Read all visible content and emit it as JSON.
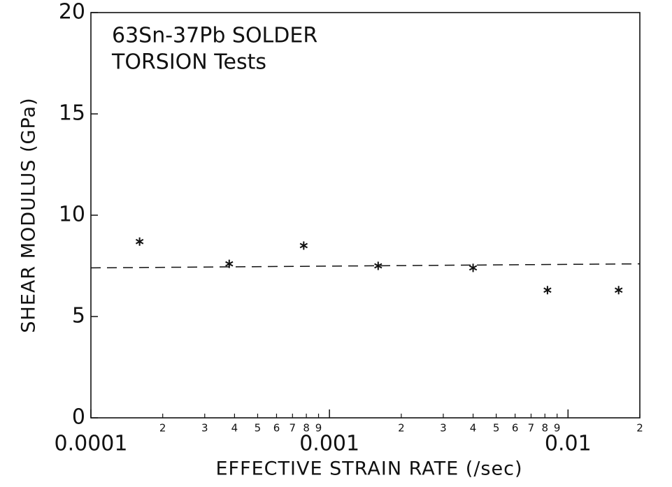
{
  "chart_data": {
    "type": "scatter",
    "annotation": [
      "63Sn-37Pb SOLDER",
      "TORSION Tests"
    ],
    "xlabel": "EFFECTIVE STRAIN RATE (/sec)",
    "ylabel": "SHEAR MODULUS (GPa)",
    "xscale": "log",
    "xlim": [
      0.0001,
      0.02
    ],
    "ylim": [
      0,
      20
    ],
    "xticks": [
      0.0001,
      0.001,
      0.01
    ],
    "xminorticks": [
      {
        "value": 0.0002,
        "label": "2"
      },
      {
        "value": 0.0003,
        "label": "3"
      },
      {
        "value": 0.0004,
        "label": "4"
      },
      {
        "value": 0.0005,
        "label": "5"
      },
      {
        "value": 0.0006,
        "label": "6"
      },
      {
        "value": 0.0007,
        "label": "7"
      },
      {
        "value": 0.0008,
        "label": "8"
      },
      {
        "value": 0.0009,
        "label": "9"
      },
      {
        "value": 0.002,
        "label": "2"
      },
      {
        "value": 0.003,
        "label": "3"
      },
      {
        "value": 0.004,
        "label": "4"
      },
      {
        "value": 0.005,
        "label": "5"
      },
      {
        "value": 0.006,
        "label": "6"
      },
      {
        "value": 0.007,
        "label": "7"
      },
      {
        "value": 0.008,
        "label": "8"
      },
      {
        "value": 0.009,
        "label": "9"
      },
      {
        "value": 0.02,
        "label": "2"
      }
    ],
    "yticks": [
      0,
      5,
      10,
      15,
      20
    ],
    "color": "#111111",
    "x": [
      0.00016,
      0.00038,
      0.00078,
      0.0016,
      0.004,
      0.0082,
      0.0163
    ],
    "values": [
      8.7,
      7.6,
      8.5,
      7.5,
      7.4,
      6.3,
      6.3
    ],
    "fit_line": {
      "x": [
        0.0001,
        0.02
      ],
      "values": [
        7.4,
        7.6
      ]
    }
  }
}
